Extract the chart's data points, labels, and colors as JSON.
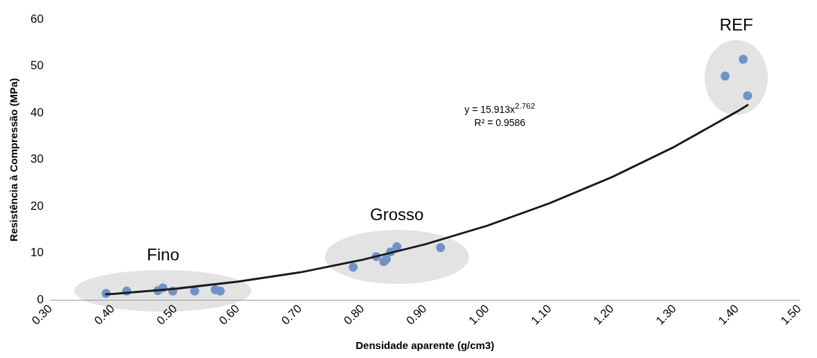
{
  "chart_data": {
    "type": "scatter",
    "xlabel": "Densidade aparente (g/cm3)",
    "ylabel": "Resistência à Compressão (MPa)",
    "xlim": [
      0.3,
      1.5
    ],
    "xticks": [
      {
        "value": 0.3,
        "label": "0.30"
      },
      {
        "value": 0.4,
        "label": "0.40"
      },
      {
        "value": 0.5,
        "label": "0.50"
      },
      {
        "value": 0.6,
        "label": "0.60"
      },
      {
        "value": 0.7,
        "label": "0.70"
      },
      {
        "value": 0.8,
        "label": "0.80"
      },
      {
        "value": 0.9,
        "label": "0.90"
      },
      {
        "value": 1.0,
        "label": "1.00"
      },
      {
        "value": 1.1,
        "label": "1.10"
      },
      {
        "value": 1.2,
        "label": "1.20"
      },
      {
        "value": 1.3,
        "label": "1.30"
      },
      {
        "value": 1.4,
        "label": "1.40"
      },
      {
        "value": 1.5,
        "label": "1.50"
      }
    ],
    "ylim": [
      0,
      60
    ],
    "yticks": [
      0,
      10,
      20,
      30,
      40,
      50,
      60
    ],
    "grid": false,
    "legend": false,
    "marker": "circle",
    "series": [
      {
        "color": "#7092c8",
        "x": [
          0.389,
          0.422,
          0.472,
          0.48,
          0.496,
          0.531,
          0.564,
          0.572,
          0.785,
          0.822,
          0.834,
          0.838,
          0.845,
          0.855,
          0.925,
          1.381,
          1.41,
          1.417
        ],
        "values": [
          1.4,
          1.9,
          2.0,
          2.6,
          1.9,
          1.9,
          2.2,
          1.9,
          7.0,
          9.3,
          8.2,
          8.7,
          10.3,
          11.4,
          11.2,
          47.9,
          51.5,
          43.7
        ]
      },
      {
        "type": "line",
        "color": "#1a1a1a",
        "marker": "none",
        "x": [
          0.389,
          0.4,
          0.5,
          0.6,
          0.7,
          0.8,
          0.9,
          1.0,
          1.1,
          1.2,
          1.3,
          1.4,
          1.417
        ],
        "values": [
          1.2,
          1.3,
          2.4,
          3.9,
          5.9,
          8.6,
          11.9,
          15.9,
          20.7,
          26.3,
          32.8,
          40.3,
          41.7
        ]
      }
    ],
    "annotations": [
      "Fino",
      "Grosso",
      "REF",
      "y = 15.913x$^{2.762}$",
      "R² = 0.9586"
    ]
  }
}
